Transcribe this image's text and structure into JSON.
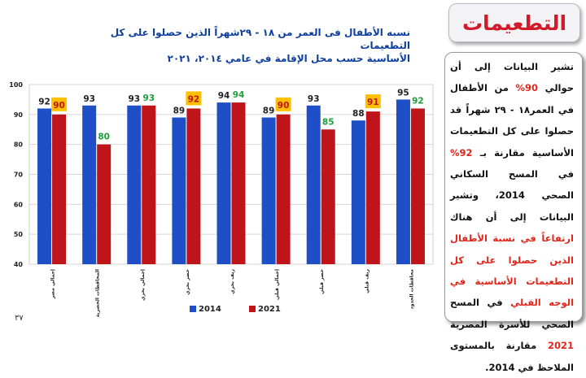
{
  "header": {
    "title": "التطعيمات"
  },
  "side_text": {
    "p1": "تشير البيانات إلى أن حوالي",
    "p2": "90%",
    "p3": " من الأطفال في العمر١٨ - ٢٩ شهراً قد حصلوا على كل التطعيمات الأساسية مقارنة بـ ",
    "p4": "92%",
    "p5": " في المسح السكاني الصحي 2014، وتشير البيانات إلى أن هناك ",
    "p6": "ارتفاعاً في نسبة الأطفال الذين حصلوا على كل التطعيمات الأساسية في الوجه القبلي",
    "p7": " في المسح الصحي للأسرة المصرية ",
    "p8": "2021",
    "p9": " مقارنة بالمستوى الملاحظ في 2014."
  },
  "page_number": "٣٧",
  "chart_data": {
    "type": "bar",
    "title_line1": "نسبه الأطفال فى العمر من ١٨ - ٢٩شهراً الذين حصلوا على كل التطعيمات",
    "title_line2": "الأساسية حسب محل الإقامة في عامي ٢٠١٤، ٢٠٢١",
    "categories": [
      "إجمالي مصر",
      "المحافظات الحضرية",
      "إجمالي بحري",
      "حضر بحري",
      "ريف بحري",
      "إجمالي قبلي",
      "حضر قبلي",
      "ريف قبلي",
      "محافظات الحدود"
    ],
    "series": [
      {
        "name": "2014",
        "color": "#1f4fc7",
        "values": [
          92,
          93,
          93,
          89,
          94,
          89,
          93,
          88,
          95
        ]
      },
      {
        "name": "2021",
        "color": "#c0141b",
        "values": [
          90,
          80,
          93,
          92,
          94,
          90,
          85,
          91,
          92
        ]
      }
    ],
    "label_style_2021": [
      "boxed",
      "green",
      "green",
      "boxed",
      "green",
      "boxed",
      "green",
      "boxed",
      "green"
    ],
    "ylim": [
      40,
      100
    ],
    "yticks": [
      40,
      50,
      60,
      70,
      80,
      90,
      100
    ],
    "grid": true,
    "legend_position": "bottom",
    "colors": {
      "label_box": "#ffc000",
      "label_green": "#1e9e3c"
    }
  }
}
